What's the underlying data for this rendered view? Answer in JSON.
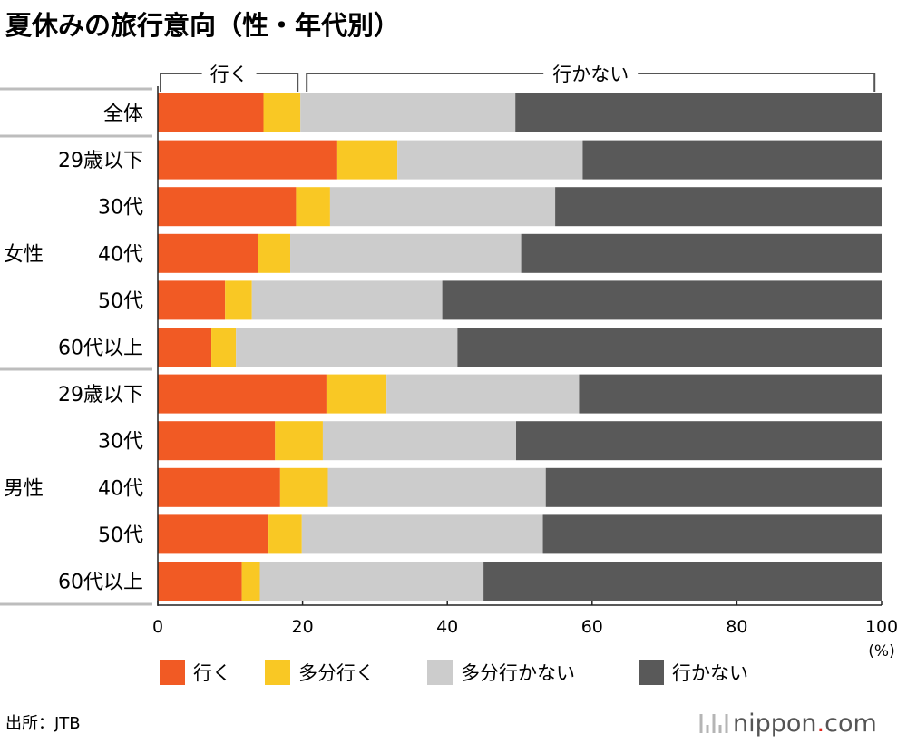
{
  "chart_data": {
    "type": "bar",
    "orientation": "horizontal",
    "stacked": true,
    "title": "夏休みの旅行意向（性・年代別）",
    "unit": "(%)",
    "xlim": [
      0,
      100
    ],
    "xticks": [
      "0",
      "20",
      "40",
      "60",
      "80",
      "100"
    ],
    "groups": [
      {
        "label": "",
        "rows": [
          0
        ]
      },
      {
        "label": "女性",
        "rows": [
          1,
          2,
          3,
          4,
          5
        ]
      },
      {
        "label": "男性",
        "rows": [
          6,
          7,
          8,
          9,
          10
        ]
      }
    ],
    "categories": [
      "全体",
      "29歳以下",
      "30代",
      "40代",
      "50代",
      "60代以上",
      "29歳以下",
      "30代",
      "40代",
      "50代",
      "60代以上"
    ],
    "series": [
      {
        "name": "行く",
        "color": "#f15a24",
        "values": [
          14.6,
          24.8,
          19.1,
          13.8,
          9.3,
          7.4,
          23.3,
          16.2,
          16.9,
          15.3,
          11.6
        ]
      },
      {
        "name": "多分行く",
        "color": "#f9c824",
        "values": [
          5.1,
          8.3,
          4.7,
          4.5,
          3.7,
          3.4,
          8.3,
          6.6,
          6.6,
          4.6,
          2.5
        ]
      },
      {
        "name": "多分行かない",
        "color": "#cccccc",
        "values": [
          29.7,
          25.6,
          31.1,
          31.9,
          26.3,
          30.6,
          26.6,
          26.7,
          30.1,
          33.3,
          30.9
        ]
      },
      {
        "name": "行かない",
        "color": "#595959",
        "values": [
          50.6,
          41.3,
          45.1,
          49.8,
          60.7,
          58.6,
          41.8,
          50.5,
          46.4,
          46.8,
          55.0
        ]
      }
    ],
    "brackets": [
      {
        "label": "行く",
        "from": 0,
        "to": 19.7
      },
      {
        "label": "行かない",
        "from": 20.2,
        "to": 99.4
      }
    ],
    "legend": {
      "position": "bottom"
    },
    "source": "出所：JTB",
    "brand": {
      "name": "nippon",
      "dot": ".",
      "suffix": "com"
    }
  }
}
